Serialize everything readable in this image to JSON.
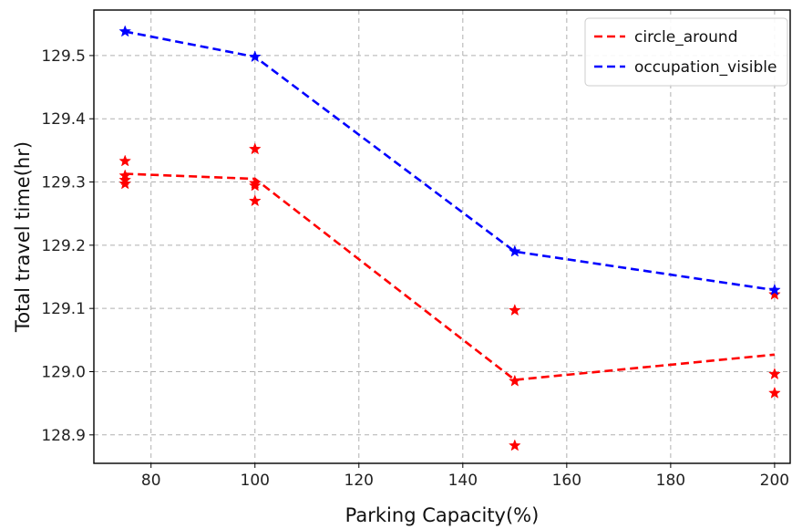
{
  "chart_data": {
    "type": "line",
    "title": "",
    "xlabel": "Parking Capacity(%)",
    "ylabel": "Total travel time(hr)",
    "xlim": [
      69,
      203
    ],
    "ylim": [
      128.855,
      129.572
    ],
    "xticks": [
      "80",
      "100",
      "120",
      "140",
      "160",
      "180",
      "200"
    ],
    "yticks": [
      "128.9",
      "129.0",
      "129.1",
      "129.2",
      "129.3",
      "129.4",
      "129.5"
    ],
    "grid": true,
    "legend_position": "top-right",
    "series": [
      {
        "name": "circle_around",
        "color": "#ff0000",
        "line_style": "dashed",
        "line": {
          "x": [
            75,
            100,
            150,
            200
          ],
          "y": [
            129.313,
            129.305,
            128.987,
            129.027
          ]
        },
        "points": {
          "x": [
            75,
            75,
            75,
            75,
            100,
            100,
            100,
            100,
            150,
            150,
            150,
            200,
            200,
            200
          ],
          "y": [
            129.333,
            129.31,
            129.297,
            129.303,
            129.352,
            129.298,
            129.294,
            129.27,
            129.097,
            128.985,
            128.883,
            129.122,
            128.996,
            128.966
          ]
        }
      },
      {
        "name": "occupation_visible",
        "color": "#0000ff",
        "line_style": "dashed",
        "line": {
          "x": [
            75,
            100,
            150,
            200
          ],
          "y": [
            129.538,
            129.498,
            129.19,
            129.129
          ]
        },
        "points": {
          "x": [
            75,
            100,
            150,
            200
          ],
          "y": [
            129.538,
            129.498,
            129.19,
            129.129
          ]
        }
      }
    ]
  }
}
